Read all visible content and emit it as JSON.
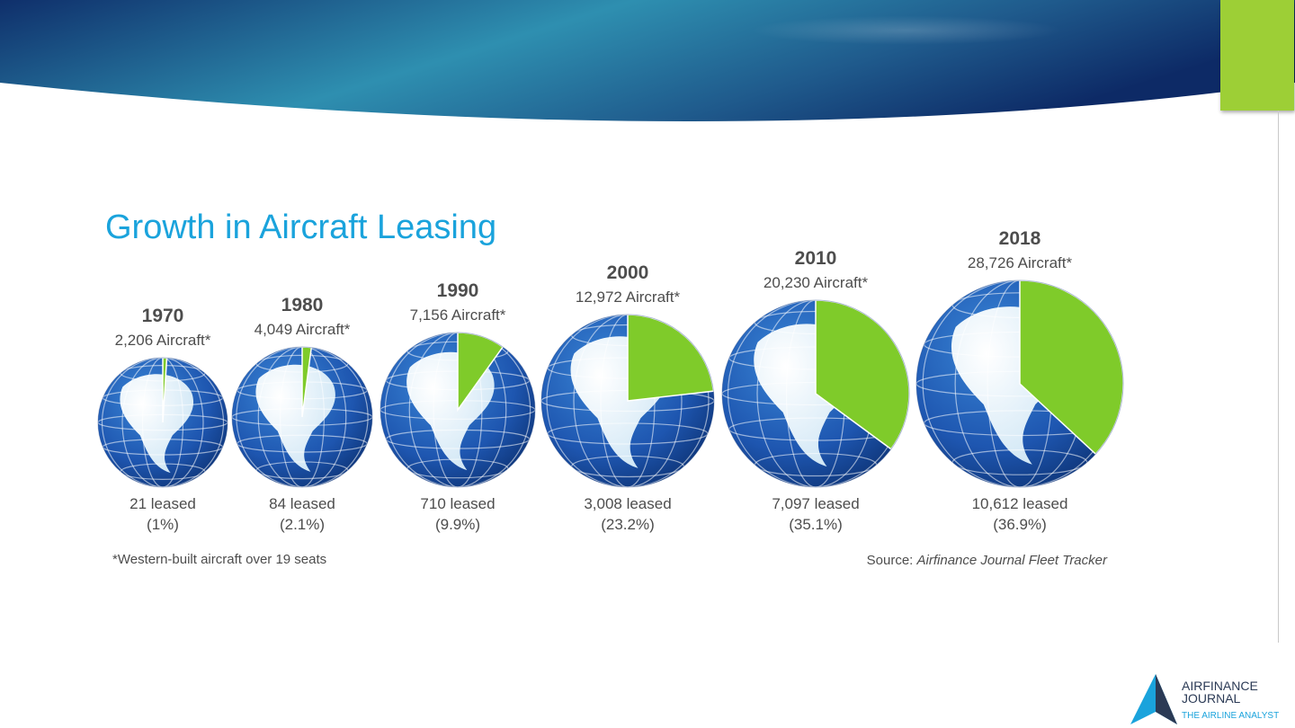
{
  "slide": {
    "title": "Growth in Aircraft Leasing",
    "footnote": "*Western-built aircraft over 19 seats",
    "source_prefix": "Source: ",
    "source_name": "Airfinance Journal Fleet Tracker"
  },
  "logo": {
    "name": "AIRFINANCE\nJOURNAL",
    "subtitle": "THE AIRLINE ANALYST"
  },
  "colors": {
    "title": "#1aa3dc",
    "leased_slice": "#7fcb2a",
    "accent_bar": "#9dcf36",
    "banner_dark": "#0f2f6b",
    "banner_light": "#2e8fb0",
    "globe_ocean": "#1e56b0",
    "globe_land": "#eaf4fb"
  },
  "chart_data": {
    "type": "pie",
    "title": "Growth in Aircraft Leasing",
    "note": "Each globe's size scales with total fleet; green slice = leased share",
    "series": [
      {
        "year": "1970",
        "total": 2206,
        "total_label": "2,206 Aircraft*",
        "leased": 21,
        "leased_label": "21 leased",
        "percent": 1.0,
        "percent_label": "(1%)"
      },
      {
        "year": "1980",
        "total": 4049,
        "total_label": "4,049 Aircraft*",
        "leased": 84,
        "leased_label": "84 leased",
        "percent": 2.1,
        "percent_label": "(2.1%)"
      },
      {
        "year": "1990",
        "total": 7156,
        "total_label": "7,156 Aircraft*",
        "leased": 710,
        "leased_label": "710 leased",
        "percent": 9.9,
        "percent_label": "(9.9%)"
      },
      {
        "year": "2000",
        "total": 12972,
        "total_label": "12,972 Aircraft*",
        "leased": 3008,
        "leased_label": "3,008 leased",
        "percent": 23.2,
        "percent_label": "(23.2%)"
      },
      {
        "year": "2010",
        "total": 20230,
        "total_label": "20,230 Aircraft*",
        "leased": 7097,
        "leased_label": "7,097 leased",
        "percent": 35.1,
        "percent_label": "(35.1%)"
      },
      {
        "year": "2018",
        "total": 28726,
        "total_label": "28,726 Aircraft*",
        "leased": 10612,
        "leased_label": "10,612 leased",
        "percent": 36.9,
        "percent_label": "(36.9%)"
      }
    ]
  }
}
